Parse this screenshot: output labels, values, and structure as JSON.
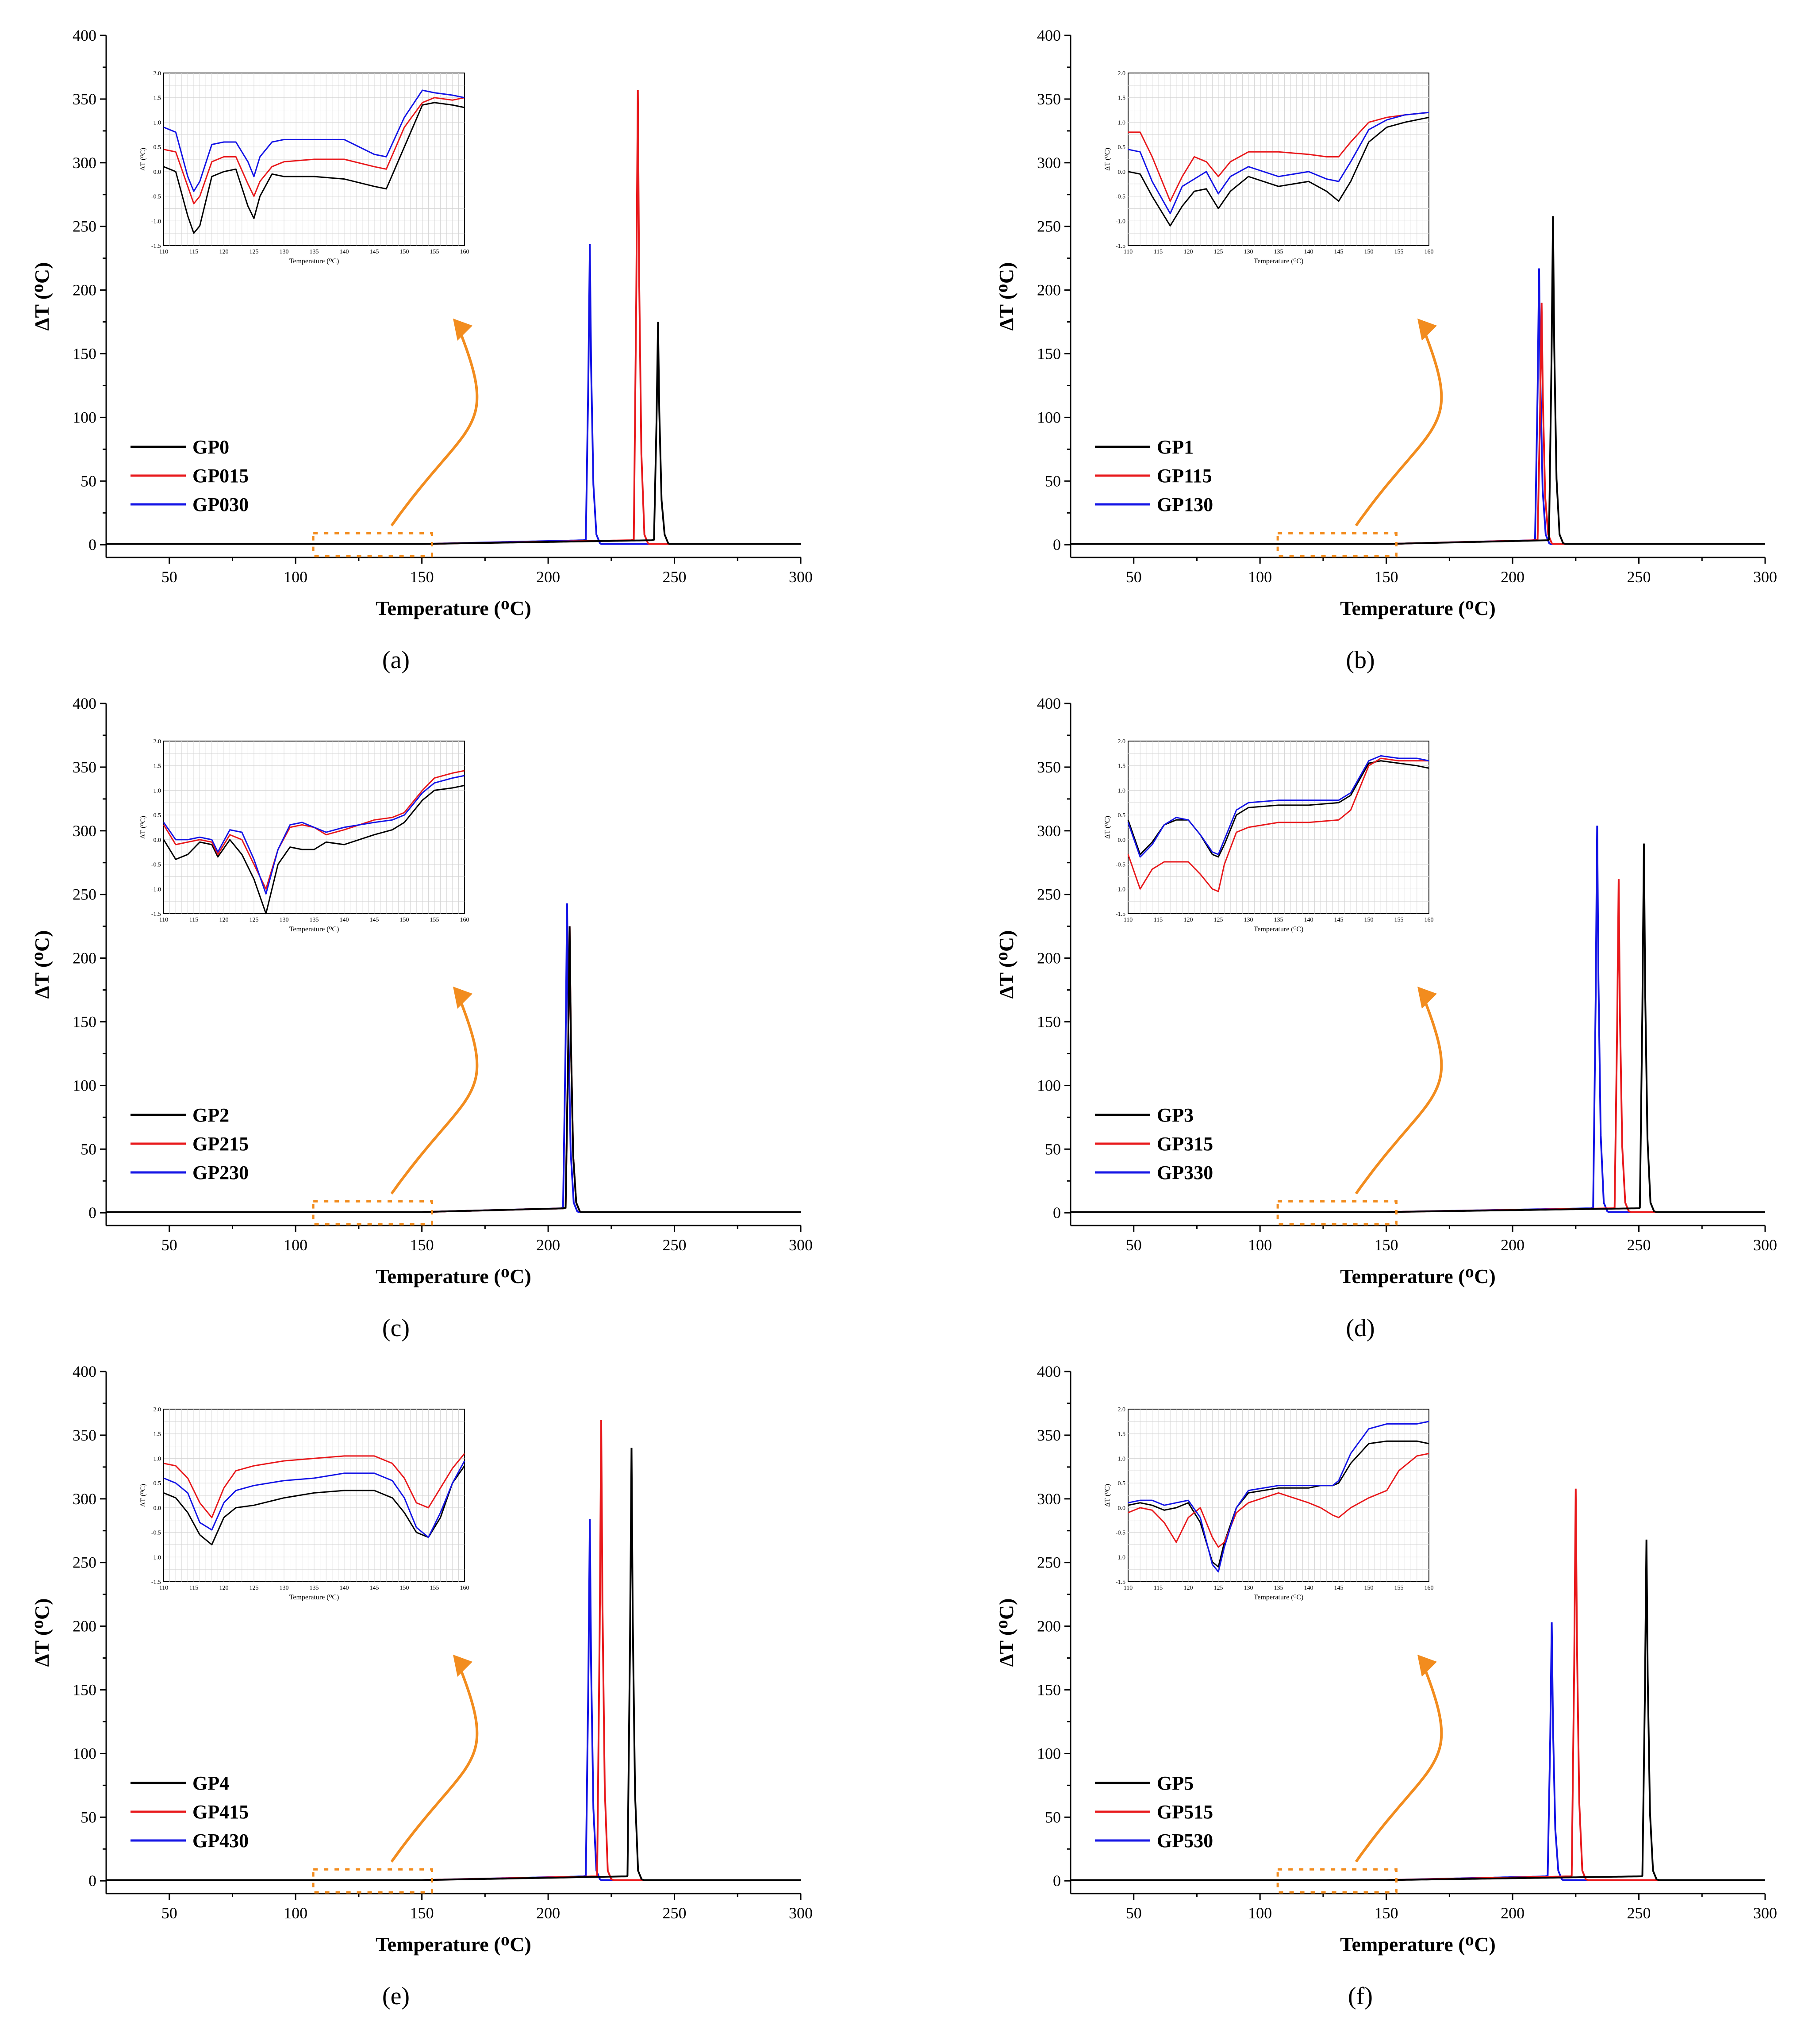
{
  "figure": {
    "x_axis_title": "Temperature (ᴼC)",
    "y_axis_title": "ΔT (ᴼC)",
    "inset_x_axis_title": "Temperature (ᴼC)",
    "inset_y_axis_title": "ΔT (ᴼC)",
    "colors": {
      "black": "#000000",
      "red": "#e8191c",
      "blue": "#1414e6",
      "arrow": "#f28c1e",
      "inset_grid": "#d4d4d4"
    }
  },
  "chart_data": [
    {
      "panel": "a",
      "label": "(a)",
      "type": "line",
      "xlim": [
        25,
        300
      ],
      "ylim": [
        -10,
        400
      ],
      "x_ticks": [
        "50",
        "100",
        "150",
        "200",
        "250",
        "300"
      ],
      "y_ticks": [
        "0",
        "50",
        "100",
        "150",
        "200",
        "250",
        "300",
        "350",
        "400"
      ],
      "series": [
        {
          "name": "GP0",
          "color": "#000000",
          "peak_x": 243.5,
          "peak_y": 175
        },
        {
          "name": "GP015",
          "color": "#e8191c",
          "peak_x": 235.5,
          "peak_y": 357
        },
        {
          "name": "GP030",
          "color": "#1414e6",
          "peak_x": 216.5,
          "peak_y": 236
        }
      ],
      "inset": {
        "xlim": [
          110,
          160
        ],
        "ylim": [
          -1.5,
          2.0
        ],
        "x_ticks": [
          "110",
          "115",
          "120",
          "125",
          "130",
          "135",
          "140",
          "145",
          "150",
          "155",
          "160"
        ],
        "y_ticks": [
          "-1.5",
          "-1.0",
          "-0.5",
          "0.0",
          "0.5",
          "1.0",
          "1.5",
          "2.0"
        ],
        "x": [
          110,
          112,
          114,
          115,
          116,
          118,
          120,
          122,
          124,
          125,
          126,
          128,
          130,
          135,
          140,
          145,
          147,
          150,
          153,
          155,
          158,
          160
        ],
        "series": [
          {
            "name": "GP0",
            "y": [
              0.1,
              0.0,
              -0.9,
              -1.25,
              -1.1,
              -0.1,
              0.0,
              0.05,
              -0.7,
              -0.95,
              -0.5,
              -0.05,
              -0.1,
              -0.1,
              -0.15,
              -0.3,
              -0.35,
              0.5,
              1.35,
              1.4,
              1.35,
              1.3
            ]
          },
          {
            "name": "GP015",
            "y": [
              0.45,
              0.4,
              -0.3,
              -0.65,
              -0.5,
              0.2,
              0.3,
              0.3,
              -0.25,
              -0.5,
              -0.2,
              0.1,
              0.2,
              0.25,
              0.25,
              0.1,
              0.05,
              0.9,
              1.4,
              1.5,
              1.45,
              1.5
            ]
          },
          {
            "name": "GP030",
            "y": [
              0.9,
              0.8,
              -0.1,
              -0.4,
              -0.2,
              0.55,
              0.6,
              0.6,
              0.2,
              -0.1,
              0.3,
              0.6,
              0.65,
              0.65,
              0.65,
              0.35,
              0.3,
              1.1,
              1.65,
              1.6,
              1.55,
              1.5
            ]
          }
        ]
      }
    },
    {
      "panel": "b",
      "label": "(b)",
      "type": "line",
      "xlim": [
        25,
        300
      ],
      "ylim": [
        -10,
        400
      ],
      "x_ticks": [
        "50",
        "100",
        "150",
        "200",
        "250",
        "300"
      ],
      "y_ticks": [
        "0",
        "50",
        "100",
        "150",
        "200",
        "250",
        "300",
        "350",
        "400"
      ],
      "series": [
        {
          "name": "GP1",
          "color": "#000000",
          "peak_x": 216,
          "peak_y": 258
        },
        {
          "name": "GP115",
          "color": "#e8191c",
          "peak_x": 211.5,
          "peak_y": 190
        },
        {
          "name": "GP130",
          "color": "#1414e6",
          "peak_x": 210.5,
          "peak_y": 217
        }
      ],
      "inset": {
        "xlim": [
          110,
          160
        ],
        "ylim": [
          -1.5,
          2.0
        ],
        "x_ticks": [
          "110",
          "115",
          "120",
          "125",
          "130",
          "135",
          "140",
          "145",
          "150",
          "155",
          "160"
        ],
        "y_ticks": [
          "-1.5",
          "-1.0",
          "-0.5",
          "0.0",
          "0.5",
          "1.0",
          "1.5",
          "2.0"
        ],
        "x": [
          110,
          112,
          114,
          117,
          119,
          121,
          123,
          125,
          127,
          130,
          135,
          140,
          143,
          145,
          147,
          150,
          153,
          156,
          160
        ],
        "series": [
          {
            "name": "GP1",
            "y": [
              0.0,
              -0.05,
              -0.5,
              -1.1,
              -0.7,
              -0.4,
              -0.35,
              -0.75,
              -0.4,
              -0.1,
              -0.3,
              -0.2,
              -0.4,
              -0.6,
              -0.2,
              0.6,
              0.9,
              1.0,
              1.1
            ]
          },
          {
            "name": "GP115",
            "y": [
              0.8,
              0.8,
              0.3,
              -0.6,
              -0.1,
              0.3,
              0.2,
              -0.1,
              0.2,
              0.4,
              0.4,
              0.35,
              0.3,
              0.3,
              0.6,
              1.0,
              1.1,
              1.15,
              1.2
            ]
          },
          {
            "name": "GP130",
            "y": [
              0.45,
              0.4,
              -0.2,
              -0.85,
              -0.3,
              -0.15,
              0.0,
              -0.45,
              -0.1,
              0.1,
              -0.1,
              0.0,
              -0.15,
              -0.2,
              0.2,
              0.85,
              1.05,
              1.15,
              1.2
            ]
          }
        ]
      }
    },
    {
      "panel": "c",
      "label": "(c)",
      "type": "line",
      "xlim": [
        25,
        300
      ],
      "ylim": [
        -10,
        400
      ],
      "x_ticks": [
        "50",
        "100",
        "150",
        "200",
        "250",
        "300"
      ],
      "y_ticks": [
        "0",
        "50",
        "100",
        "150",
        "200",
        "250",
        "300",
        "350",
        "400"
      ],
      "series": [
        {
          "name": "GP2",
          "color": "#000000",
          "peak_x": 208.5,
          "peak_y": 225
        },
        {
          "name": "GP215",
          "color": "#e8191c",
          "peak_x": 208.5,
          "peak_y": 225
        },
        {
          "name": "GP230",
          "color": "#1414e6",
          "peak_x": 207.5,
          "peak_y": 243
        }
      ],
      "inset": {
        "xlim": [
          110,
          160
        ],
        "ylim": [
          -1.5,
          2.0
        ],
        "x_ticks": [
          "110",
          "115",
          "120",
          "125",
          "130",
          "135",
          "140",
          "145",
          "150",
          "155",
          "160"
        ],
        "y_ticks": [
          "-1.5",
          "-1.0",
          "-0.5",
          "0.0",
          "0.5",
          "1.0",
          "1.5",
          "2.0"
        ],
        "x": [
          110,
          112,
          114,
          116,
          118,
          119,
          121,
          123,
          125,
          127,
          129,
          131,
          133,
          135,
          137,
          140,
          145,
          148,
          150,
          153,
          155,
          158,
          160
        ],
        "series": [
          {
            "name": "GP2",
            "y": [
              0.0,
              -0.4,
              -0.3,
              -0.05,
              -0.1,
              -0.35,
              0.0,
              -0.3,
              -0.8,
              -1.5,
              -0.5,
              -0.15,
              -0.2,
              -0.2,
              -0.05,
              -0.1,
              0.1,
              0.2,
              0.35,
              0.8,
              1.0,
              1.05,
              1.1
            ]
          },
          {
            "name": "GP215",
            "y": [
              0.3,
              -0.1,
              -0.05,
              0.0,
              -0.05,
              -0.3,
              0.1,
              0.0,
              -0.5,
              -1.0,
              -0.2,
              0.25,
              0.3,
              0.25,
              0.1,
              0.2,
              0.4,
              0.45,
              0.55,
              1.0,
              1.25,
              1.35,
              1.4
            ]
          },
          {
            "name": "GP230",
            "y": [
              0.35,
              0.0,
              0.0,
              0.05,
              0.0,
              -0.25,
              0.2,
              0.15,
              -0.4,
              -1.1,
              -0.2,
              0.3,
              0.35,
              0.25,
              0.15,
              0.25,
              0.35,
              0.4,
              0.5,
              0.95,
              1.15,
              1.25,
              1.3
            ]
          }
        ]
      }
    },
    {
      "panel": "d",
      "label": "(d)",
      "type": "line",
      "xlim": [
        25,
        300
      ],
      "ylim": [
        -10,
        400
      ],
      "x_ticks": [
        "50",
        "100",
        "150",
        "200",
        "250",
        "300"
      ],
      "y_ticks": [
        "0",
        "50",
        "100",
        "150",
        "200",
        "250",
        "300",
        "350",
        "400"
      ],
      "series": [
        {
          "name": "GP3",
          "color": "#000000",
          "peak_x": 252,
          "peak_y": 290
        },
        {
          "name": "GP315",
          "color": "#e8191c",
          "peak_x": 242,
          "peak_y": 262
        },
        {
          "name": "GP330",
          "color": "#1414e6",
          "peak_x": 233.5,
          "peak_y": 304
        }
      ],
      "inset": {
        "xlim": [
          110,
          160
        ],
        "ylim": [
          -1.5,
          2.0
        ],
        "x_ticks": [
          "110",
          "115",
          "120",
          "125",
          "130",
          "135",
          "140",
          "145",
          "150",
          "155",
          "160"
        ],
        "y_ticks": [
          "-1.5",
          "-1.0",
          "-0.5",
          "0.0",
          "0.5",
          "1.0",
          "1.5",
          "2.0"
        ],
        "x": [
          110,
          112,
          114,
          116,
          118,
          120,
          122,
          124,
          125,
          126,
          128,
          130,
          135,
          140,
          145,
          147,
          150,
          152,
          155,
          158,
          160
        ],
        "series": [
          {
            "name": "GP3",
            "y": [
              0.4,
              -0.3,
              -0.05,
              0.3,
              0.4,
              0.4,
              0.1,
              -0.3,
              -0.35,
              -0.1,
              0.5,
              0.65,
              0.7,
              0.7,
              0.75,
              0.9,
              1.55,
              1.6,
              1.55,
              1.5,
              1.45
            ]
          },
          {
            "name": "GP315",
            "y": [
              -0.3,
              -1.0,
              -0.6,
              -0.45,
              -0.45,
              -0.45,
              -0.7,
              -1.0,
              -1.05,
              -0.5,
              0.15,
              0.25,
              0.35,
              0.35,
              0.4,
              0.6,
              1.5,
              1.65,
              1.6,
              1.6,
              1.6
            ]
          },
          {
            "name": "GP330",
            "y": [
              0.35,
              -0.35,
              -0.1,
              0.3,
              0.45,
              0.4,
              0.1,
              -0.25,
              -0.3,
              0.0,
              0.6,
              0.75,
              0.8,
              0.8,
              0.8,
              0.95,
              1.6,
              1.7,
              1.65,
              1.65,
              1.6
            ]
          }
        ]
      }
    },
    {
      "panel": "e",
      "label": "(e)",
      "type": "line",
      "xlim": [
        25,
        300
      ],
      "ylim": [
        -10,
        400
      ],
      "x_ticks": [
        "50",
        "100",
        "150",
        "200",
        "250",
        "300"
      ],
      "y_ticks": [
        "0",
        "50",
        "100",
        "150",
        "200",
        "250",
        "300",
        "350",
        "400"
      ],
      "series": [
        {
          "name": "GP4",
          "color": "#000000",
          "peak_x": 233,
          "peak_y": 340
        },
        {
          "name": "GP415",
          "color": "#e8191c",
          "peak_x": 221,
          "peak_y": 362
        },
        {
          "name": "GP430",
          "color": "#1414e6",
          "peak_x": 216.5,
          "peak_y": 284
        }
      ],
      "inset": {
        "xlim": [
          110,
          160
        ],
        "ylim": [
          -1.5,
          2.0
        ],
        "x_ticks": [
          "110",
          "115",
          "120",
          "125",
          "130",
          "135",
          "140",
          "145",
          "150",
          "155",
          "160"
        ],
        "y_ticks": [
          "-1.5",
          "-1.0",
          "-0.5",
          "0.0",
          "0.5",
          "1.0",
          "1.5",
          "2.0"
        ],
        "x": [
          110,
          112,
          114,
          116,
          118,
          120,
          122,
          125,
          130,
          135,
          140,
          145,
          148,
          150,
          152,
          154,
          156,
          158,
          160
        ],
        "series": [
          {
            "name": "GP4",
            "y": [
              0.3,
              0.2,
              -0.1,
              -0.55,
              -0.75,
              -0.2,
              0.0,
              0.05,
              0.2,
              0.3,
              0.35,
              0.35,
              0.2,
              -0.1,
              -0.5,
              -0.6,
              -0.2,
              0.5,
              0.85
            ]
          },
          {
            "name": "GP415",
            "y": [
              0.9,
              0.85,
              0.6,
              0.1,
              -0.2,
              0.4,
              0.75,
              0.85,
              0.95,
              1.0,
              1.05,
              1.05,
              0.9,
              0.6,
              0.1,
              0.0,
              0.4,
              0.8,
              1.1
            ]
          },
          {
            "name": "GP430",
            "y": [
              0.6,
              0.5,
              0.3,
              -0.3,
              -0.45,
              0.1,
              0.35,
              0.45,
              0.55,
              0.6,
              0.7,
              0.7,
              0.55,
              0.2,
              -0.4,
              -0.6,
              -0.1,
              0.5,
              0.95
            ]
          }
        ]
      }
    },
    {
      "panel": "f",
      "label": "(f)",
      "type": "line",
      "xlim": [
        25,
        300
      ],
      "ylim": [
        -10,
        400
      ],
      "x_ticks": [
        "50",
        "100",
        "150",
        "200",
        "250",
        "300"
      ],
      "y_ticks": [
        "0",
        "50",
        "100",
        "150",
        "200",
        "250",
        "300",
        "350",
        "400"
      ],
      "series": [
        {
          "name": "GP5",
          "color": "#000000",
          "peak_x": 253,
          "peak_y": 268
        },
        {
          "name": "GP515",
          "color": "#e8191c",
          "peak_x": 225,
          "peak_y": 308
        },
        {
          "name": "GP530",
          "color": "#1414e6",
          "peak_x": 215.5,
          "peak_y": 203
        }
      ],
      "inset": {
        "xlim": [
          110,
          160
        ],
        "ylim": [
          -1.5,
          2.0
        ],
        "x_ticks": [
          "110",
          "115",
          "120",
          "125",
          "130",
          "135",
          "140",
          "145",
          "150",
          "155",
          "160"
        ],
        "y_ticks": [
          "-1.5",
          "-1.0",
          "-0.5",
          "0.0",
          "0.5",
          "1.0",
          "1.5",
          "2.0"
        ],
        "x": [
          110,
          112,
          114,
          116,
          118,
          120,
          122,
          124,
          125,
          126,
          128,
          130,
          135,
          140,
          142,
          144,
          145,
          147,
          150,
          153,
          155,
          158,
          160
        ],
        "series": [
          {
            "name": "GP5",
            "y": [
              0.05,
              0.1,
              0.05,
              -0.05,
              0.0,
              0.1,
              -0.3,
              -1.1,
              -1.2,
              -0.7,
              0.0,
              0.3,
              0.4,
              0.4,
              0.45,
              0.45,
              0.5,
              0.9,
              1.3,
              1.35,
              1.35,
              1.35,
              1.3
            ]
          },
          {
            "name": "GP515",
            "y": [
              -0.1,
              0.0,
              -0.05,
              -0.3,
              -0.7,
              -0.2,
              0.0,
              -0.6,
              -0.8,
              -0.7,
              -0.1,
              0.1,
              0.3,
              0.1,
              0.0,
              -0.15,
              -0.2,
              0.0,
              0.2,
              0.35,
              0.75,
              1.05,
              1.1
            ]
          },
          {
            "name": "GP530",
            "y": [
              0.1,
              0.15,
              0.15,
              0.05,
              0.1,
              0.15,
              -0.2,
              -1.15,
              -1.3,
              -0.8,
              0.0,
              0.35,
              0.45,
              0.45,
              0.45,
              0.45,
              0.55,
              1.1,
              1.6,
              1.7,
              1.7,
              1.7,
              1.75
            ]
          }
        ]
      }
    }
  ]
}
